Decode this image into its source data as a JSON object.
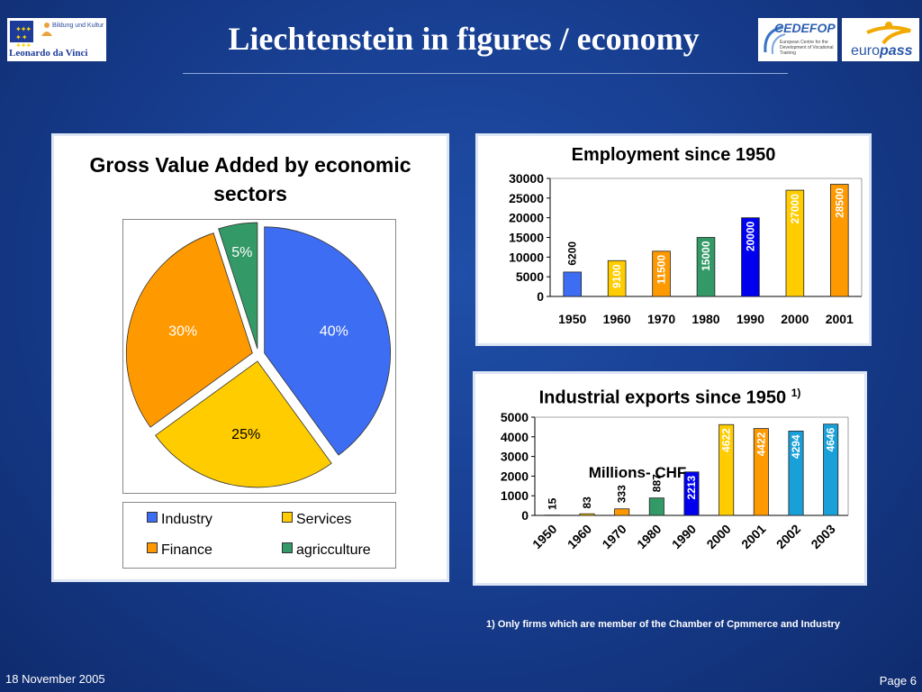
{
  "header": {
    "title": "Liechtenstein in figures / economy",
    "logo_left_small": "Bildung und Kultur",
    "logo_left_name": "Leonardo da Vinci",
    "logo_cedefop": "CEDEFOP",
    "logo_cedefop_sub": "European Centre for the Development of Vocational Training",
    "logo_europass_a": "euro",
    "logo_europass_b": "pass"
  },
  "footnote": "1) Only firms which are member of the Chamber of Cpmmerce and Industry",
  "footer": {
    "date": "18 November 2005",
    "page": "Page 6"
  },
  "colors": {
    "industry": "#3d6df2",
    "services": "#ffcc00",
    "finance": "#ff9900",
    "agriculture": "#339966",
    "navy_bar": "#0000ee",
    "cyan_bar": "#1aa0d8"
  },
  "chart_data": [
    {
      "type": "pie",
      "title": "Gross Value Added by economic sectors",
      "labels": [
        "Industry",
        "Services",
        "Finance",
        "agricculture"
      ],
      "values": [
        40,
        25,
        30,
        5
      ],
      "value_labels": [
        "40%",
        "25%",
        "30%",
        "5%"
      ],
      "colors": [
        "#3d6df2",
        "#ffcc00",
        "#ff9900",
        "#339966"
      ],
      "exploded": true,
      "legend": "bottom"
    },
    {
      "type": "bar",
      "title": "Employment since 1950",
      "categories": [
        "1950",
        "1960",
        "1970",
        "1980",
        "1990",
        "2000",
        "2001"
      ],
      "values": [
        6200,
        9100,
        11500,
        15000,
        20000,
        27000,
        28500
      ],
      "colors": [
        "#3d6df2",
        "#ffcc00",
        "#ff9900",
        "#339966",
        "#0000ee",
        "#ffcc00",
        "#ff9900"
      ],
      "ylim": [
        0,
        30000
      ],
      "yticks": [
        0,
        5000,
        10000,
        15000,
        20000,
        25000,
        30000
      ],
      "grid": false
    },
    {
      "type": "bar",
      "title": "Industrial exports since 1950",
      "title_note": "1)",
      "annotation": "Millions- CHF",
      "categories": [
        "1950",
        "1960",
        "1970",
        "1980",
        "1990",
        "2000",
        "2001",
        "2002",
        "2003"
      ],
      "values": [
        15,
        83,
        333,
        887,
        2213,
        4622,
        4422,
        4294,
        4646
      ],
      "value_labels": [
        "15",
        "83",
        "333",
        "887",
        "2213",
        "4622",
        "4422",
        "4294",
        "4646"
      ],
      "colors": [
        "#3d6df2",
        "#ffcc00",
        "#ff9900",
        "#339966",
        "#0000ee",
        "#ffcc00",
        "#ff9900",
        "#1aa0d8",
        "#1aa0d8"
      ],
      "ylim": [
        0,
        5000
      ],
      "yticks": [
        0,
        1000,
        2000,
        3000,
        4000,
        5000
      ],
      "grid": false
    }
  ]
}
